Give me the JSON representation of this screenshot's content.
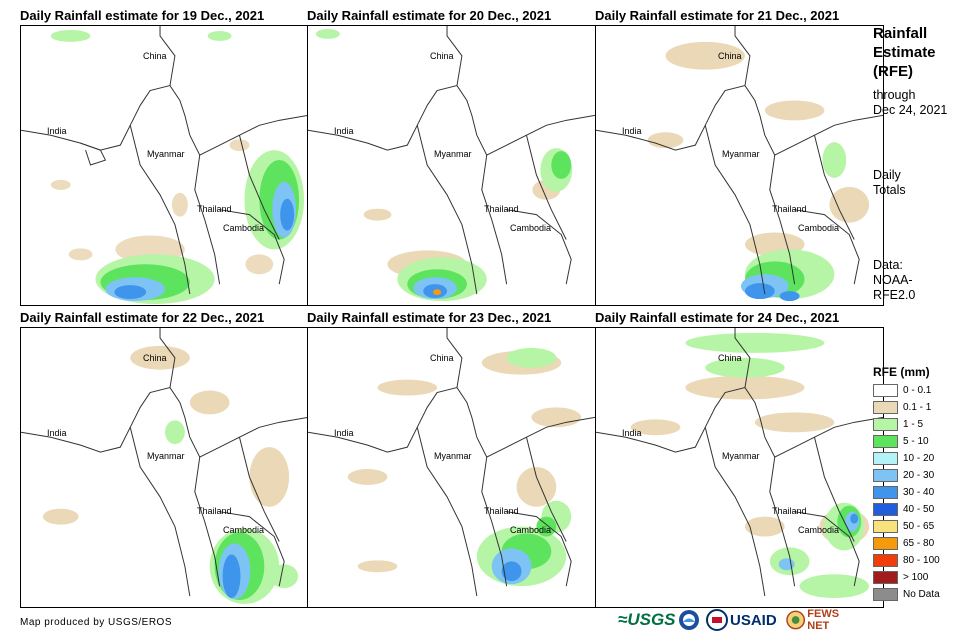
{
  "panels": [
    {
      "title": "Daily Rainfall estimate for 19 Dec., 2021"
    },
    {
      "title": "Daily Rainfall estimate for 20 Dec., 2021"
    },
    {
      "title": "Daily Rainfall estimate for 21 Dec., 2021"
    },
    {
      "title": "Daily Rainfall estimate for 22 Dec., 2021"
    },
    {
      "title": "Daily Rainfall estimate for 23 Dec., 2021"
    },
    {
      "title": "Daily Rainfall estimate for 24 Dec., 2021"
    }
  ],
  "country_labels": {
    "china": "China",
    "india": "India",
    "myanmar": "Myanmar",
    "thailand": "Thailand",
    "cambodia": "Cambodia"
  },
  "sidebar": {
    "title_line1": "Rainfall",
    "title_line2": "Estimate",
    "title_line3": "(RFE)",
    "through_line1": "through",
    "through_line2": "Dec 24, 2021",
    "daily_line1": "Daily",
    "daily_line2": "Totals",
    "data_line1": "Data:",
    "data_line2": "NOAA-",
    "data_line3": "RFE2.0"
  },
  "legend": {
    "title": "RFE (mm)",
    "items": [
      {
        "label": "0 - 0.1",
        "color": "#ffffff"
      },
      {
        "label": "0.1 - 1",
        "color": "#ead8b6"
      },
      {
        "label": "1 - 5",
        "color": "#b6f5a5"
      },
      {
        "label": "5 - 10",
        "color": "#5ee35e"
      },
      {
        "label": "10 - 20",
        "color": "#b3f2f7"
      },
      {
        "label": "20 - 30",
        "color": "#7dc4f5"
      },
      {
        "label": "30 - 40",
        "color": "#3f95ec"
      },
      {
        "label": "40 - 50",
        "color": "#1f5fdd"
      },
      {
        "label": "50 - 65",
        "color": "#f8e27c"
      },
      {
        "label": "65 - 80",
        "color": "#f59a0a"
      },
      {
        "label": "80 - 100",
        "color": "#f03d0a"
      },
      {
        "label": "> 100",
        "color": "#a11d1d"
      },
      {
        "label": "No Data",
        "color": "#8c8c8c"
      }
    ]
  },
  "credit": "Map produced by USGS/EROS",
  "logos": {
    "usgs": "≈USGS",
    "usaid": "USAID",
    "fews": "FEWS NET"
  }
}
